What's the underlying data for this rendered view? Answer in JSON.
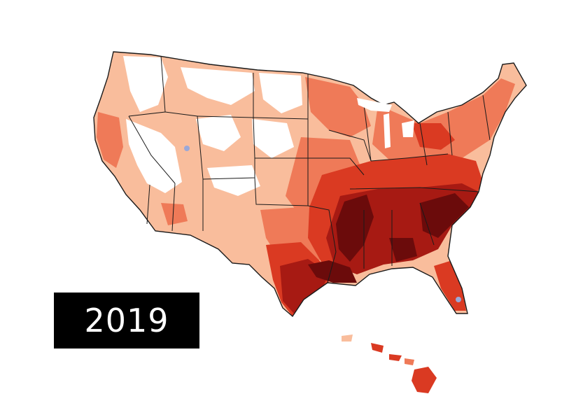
{
  "year_label": "2019",
  "colors": {
    "level_0": "#ffffff",
    "level_1": "#f9bd9c",
    "level_2": "#ef7a58",
    "level_3": "#da3a22",
    "level_4": "#a71a13",
    "level_5": "#6b0b0b",
    "minimum": "#9aa8d8",
    "borders": "#1a1a1a"
  }
}
